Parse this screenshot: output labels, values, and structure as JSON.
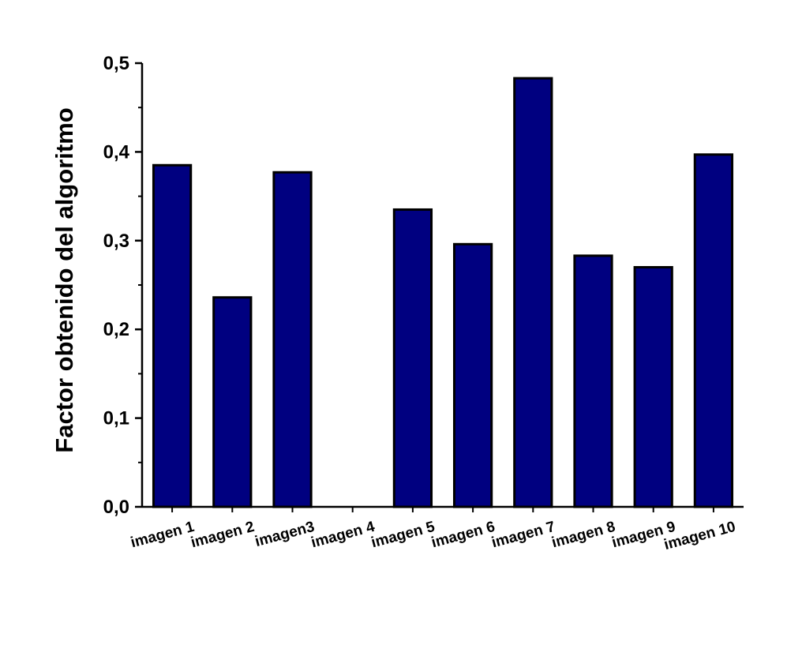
{
  "chart_data": {
    "type": "bar",
    "title": "",
    "xlabel": "",
    "ylabel": "Factor obtenido del algoritmo",
    "categories": [
      "imagen 1",
      "imagen 2",
      "imagen3",
      "imagen 4",
      "imagen 5",
      "imagen 6",
      "imagen 7",
      "imagen 8",
      "imagen 9",
      "imagen 10"
    ],
    "values": [
      0.385,
      0.236,
      0.377,
      0,
      0.335,
      0.296,
      0.483,
      0.283,
      0.27,
      0.397
    ],
    "ylim": [
      0,
      0.5
    ],
    "yticks": [
      "0,0",
      "0,1",
      "0,2",
      "0,3",
      "0,4",
      "0,5"
    ],
    "bar_color": "#000080",
    "grid": false,
    "legend": "none"
  }
}
